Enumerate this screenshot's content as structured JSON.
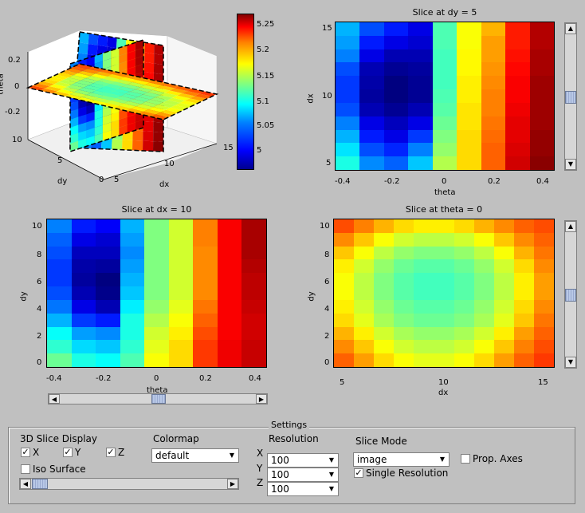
{
  "view3d": {
    "zlabel": "theta",
    "ylabel": "dy",
    "xlabel": "dx",
    "zticks": [
      "0.2",
      "0",
      "-0.2"
    ],
    "yticks": [
      "10",
      "5",
      "0"
    ],
    "xticks": [
      "5",
      "10",
      "15"
    ]
  },
  "colorbar": {
    "ticks": [
      "5.25",
      "5.2",
      "5.15",
      "5.1",
      "5.05",
      "5"
    ]
  },
  "plots": {
    "dy5": {
      "title": "Slice at dy = 5",
      "xlabel": "theta",
      "ylabel": "dx",
      "xticks": [
        "-0.4",
        "-0.2",
        "0",
        "0.2",
        "0.4"
      ],
      "yticks": [
        "15",
        "10",
        "5"
      ],
      "cols": 9,
      "rows": 11,
      "grid": [
        [
          0.3,
          0.2,
          0.15,
          0.1,
          0.45,
          0.62,
          0.7,
          0.85,
          0.95
        ],
        [
          0.28,
          0.15,
          0.1,
          0.08,
          0.45,
          0.62,
          0.72,
          0.85,
          0.95
        ],
        [
          0.25,
          0.1,
          0.05,
          0.05,
          0.44,
          0.63,
          0.72,
          0.86,
          0.96
        ],
        [
          0.2,
          0.05,
          0.02,
          0.03,
          0.44,
          0.63,
          0.73,
          0.87,
          0.96
        ],
        [
          0.18,
          0.04,
          0.0,
          0.02,
          0.44,
          0.64,
          0.74,
          0.88,
          0.97
        ],
        [
          0.18,
          0.03,
          0.0,
          0.02,
          0.45,
          0.64,
          0.75,
          0.88,
          0.97
        ],
        [
          0.2,
          0.05,
          0.02,
          0.05,
          0.46,
          0.65,
          0.75,
          0.89,
          0.97
        ],
        [
          0.25,
          0.1,
          0.06,
          0.1,
          0.48,
          0.65,
          0.76,
          0.9,
          0.97
        ],
        [
          0.3,
          0.15,
          0.1,
          0.18,
          0.5,
          0.66,
          0.77,
          0.9,
          0.98
        ],
        [
          0.35,
          0.2,
          0.16,
          0.25,
          0.52,
          0.66,
          0.78,
          0.91,
          0.98
        ],
        [
          0.4,
          0.26,
          0.22,
          0.32,
          0.55,
          0.66,
          0.78,
          0.92,
          0.99
        ]
      ]
    },
    "dx10": {
      "title": "Slice at dx = 10",
      "xlabel": "theta",
      "ylabel": "dy",
      "xticks": [
        "-0.4",
        "-0.2",
        "0",
        "0.2",
        "0.4"
      ],
      "yticks": [
        "10",
        "8",
        "6",
        "4",
        "2",
        "0"
      ],
      "cols": 9,
      "rows": 11,
      "grid": [
        [
          0.25,
          0.15,
          0.12,
          0.3,
          0.5,
          0.58,
          0.75,
          0.88,
          0.96
        ],
        [
          0.22,
          0.1,
          0.08,
          0.28,
          0.5,
          0.58,
          0.75,
          0.88,
          0.96
        ],
        [
          0.2,
          0.06,
          0.06,
          0.26,
          0.5,
          0.58,
          0.74,
          0.88,
          0.96
        ],
        [
          0.18,
          0.04,
          0.03,
          0.28,
          0.5,
          0.58,
          0.74,
          0.88,
          0.95
        ],
        [
          0.18,
          0.03,
          0.0,
          0.3,
          0.5,
          0.58,
          0.74,
          0.88,
          0.94
        ],
        [
          0.2,
          0.05,
          0.01,
          0.32,
          0.5,
          0.58,
          0.74,
          0.88,
          0.94
        ],
        [
          0.24,
          0.1,
          0.05,
          0.36,
          0.52,
          0.6,
          0.76,
          0.88,
          0.93
        ],
        [
          0.3,
          0.18,
          0.15,
          0.4,
          0.55,
          0.62,
          0.78,
          0.88,
          0.92
        ],
        [
          0.38,
          0.28,
          0.26,
          0.4,
          0.58,
          0.64,
          0.8,
          0.88,
          0.92
        ],
        [
          0.42,
          0.34,
          0.32,
          0.42,
          0.6,
          0.66,
          0.82,
          0.89,
          0.93
        ],
        [
          0.48,
          0.4,
          0.38,
          0.45,
          0.62,
          0.66,
          0.82,
          0.89,
          0.93
        ]
      ]
    },
    "theta0": {
      "title": "Slice at theta = 0",
      "xlabel": "dx",
      "ylabel": "dy",
      "xticks": [
        "5",
        "10",
        "15"
      ],
      "yticks": [
        "10",
        "8",
        "6",
        "4",
        "2",
        "0"
      ],
      "cols": 11,
      "rows": 11,
      "grid": [
        [
          0.8,
          0.75,
          0.7,
          0.66,
          0.64,
          0.64,
          0.66,
          0.7,
          0.74,
          0.78,
          0.8
        ],
        [
          0.74,
          0.68,
          0.62,
          0.58,
          0.56,
          0.56,
          0.58,
          0.62,
          0.68,
          0.74,
          0.78
        ],
        [
          0.68,
          0.62,
          0.56,
          0.52,
          0.5,
          0.5,
          0.52,
          0.56,
          0.62,
          0.7,
          0.76
        ],
        [
          0.64,
          0.58,
          0.52,
          0.48,
          0.46,
          0.46,
          0.48,
          0.52,
          0.58,
          0.66,
          0.74
        ],
        [
          0.62,
          0.56,
          0.5,
          0.46,
          0.44,
          0.44,
          0.46,
          0.5,
          0.56,
          0.64,
          0.72
        ],
        [
          0.62,
          0.56,
          0.5,
          0.46,
          0.44,
          0.44,
          0.46,
          0.5,
          0.56,
          0.64,
          0.72
        ],
        [
          0.64,
          0.58,
          0.52,
          0.48,
          0.46,
          0.46,
          0.48,
          0.52,
          0.58,
          0.66,
          0.74
        ],
        [
          0.66,
          0.6,
          0.54,
          0.5,
          0.48,
          0.48,
          0.5,
          0.54,
          0.6,
          0.68,
          0.76
        ],
        [
          0.7,
          0.64,
          0.58,
          0.54,
          0.52,
          0.52,
          0.54,
          0.58,
          0.64,
          0.72,
          0.78
        ],
        [
          0.74,
          0.68,
          0.62,
          0.58,
          0.56,
          0.56,
          0.58,
          0.62,
          0.68,
          0.75,
          0.8
        ],
        [
          0.78,
          0.72,
          0.66,
          0.62,
          0.6,
          0.6,
          0.62,
          0.66,
          0.72,
          0.78,
          0.82
        ]
      ]
    }
  },
  "sliders": {
    "dy_value_fraction": 0.5,
    "theta_value_fraction": 0.5,
    "dx_value_fraction": 0.5
  },
  "settings": {
    "legend": "Settings",
    "slice_display_label": "3D Slice Display",
    "x_label": "X",
    "y_label": "Y",
    "z_label": "Z",
    "iso_label": "Iso Surface",
    "colormap_label": "Colormap",
    "colormap_value": "default",
    "resolution_label": "Resolution",
    "res_x_label": "X",
    "res_y_label": "Y",
    "res_z_label": "Z",
    "res_x_value": "100",
    "res_y_value": "100",
    "res_z_value": "100",
    "slice_mode_label": "Slice Mode",
    "slice_mode_value": "image",
    "prop_axes_label": "Prop. Axes",
    "single_res_label": "Single Resolution",
    "x_checked": true,
    "y_checked": true,
    "z_checked": true,
    "iso_checked": false,
    "prop_axes_checked": false,
    "single_res_checked": true
  }
}
